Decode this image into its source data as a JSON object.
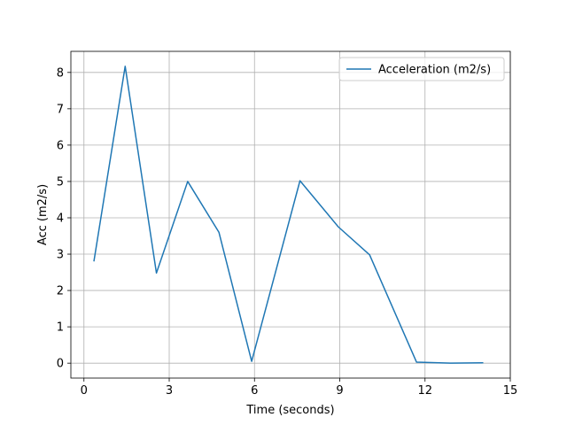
{
  "chart_data": {
    "type": "line",
    "xlabel": "Time (seconds)",
    "ylabel": "Acc (m2/s)",
    "xlim": [
      -0.46,
      15
    ],
    "ylim": [
      -0.41,
      8.58
    ],
    "xticks": [
      0,
      3,
      6,
      9,
      12,
      15
    ],
    "yticks": [
      0,
      1,
      2,
      3,
      4,
      5,
      6,
      7,
      8
    ],
    "grid": true,
    "legend_position": "top-right",
    "series": [
      {
        "name": "Acceleration (m2/s)",
        "color": "#1f77b4",
        "x": [
          0.35,
          1.45,
          2.55,
          3.65,
          4.75,
          5.9,
          7.6,
          8.95,
          10.05,
          11.7,
          12.9,
          14.05
        ],
        "y": [
          2.8,
          8.17,
          2.48,
          5.0,
          3.6,
          0.05,
          5.02,
          3.75,
          2.98,
          0.03,
          0.0,
          0.01
        ]
      }
    ]
  }
}
